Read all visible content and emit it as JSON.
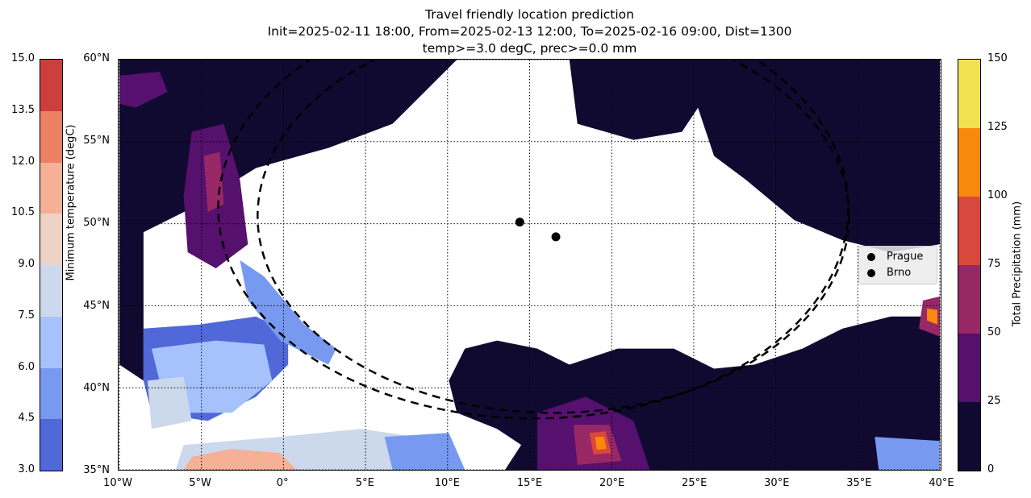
{
  "title": {
    "line1": "Travel friendly location prediction",
    "line2": "Init=2025-02-11 18:00, From=2025-02-13 12:00, To=2025-02-16 09:00, Dist=1300",
    "line3": "temp>=3.0 degC, prec>=0.0 mm"
  },
  "chart_data": {
    "type": "map",
    "extent": {
      "lon": [
        -10,
        40
      ],
      "lat": [
        35,
        60
      ]
    },
    "grid": true,
    "x_ticks": [
      "10°W",
      "5°W",
      "0°",
      "5°E",
      "10°E",
      "15°E",
      "20°E",
      "25°E",
      "30°E",
      "35°E",
      "40°E"
    ],
    "y_ticks": [
      "60°N",
      "55°N",
      "50°N",
      "45°N",
      "40°N",
      "35°N"
    ],
    "points": [
      {
        "name": "Prague",
        "lon": 14.4,
        "lat": 50.1
      },
      {
        "name": "Brno",
        "lon": 16.6,
        "lat": 49.2
      }
    ],
    "legend": {
      "placement": "right",
      "entries": [
        "Prague",
        "Brno"
      ]
    },
    "temperature_colorbar": {
      "label": "Minimum temperature (degC)",
      "ticks": [
        "3.0",
        "4.5",
        "6.0",
        "7.5",
        "9.0",
        "10.5",
        "12.0",
        "13.5",
        "15.0"
      ],
      "colors": [
        "#5068d8",
        "#7799f0",
        "#a6c2fc",
        "#ccd9ec",
        "#ecd3c6",
        "#f5b095",
        "#ec8064",
        "#cc3f3c"
      ]
    },
    "precipitation_colorbar": {
      "label": "Total Precipitation (mm)",
      "ticks": [
        "0",
        "25",
        "50",
        "75",
        "100",
        "125",
        "150"
      ],
      "colors": [
        "#110a30",
        "#56106e",
        "#982766",
        "#d9483c",
        "#f9890d",
        "#f2e150"
      ]
    }
  }
}
